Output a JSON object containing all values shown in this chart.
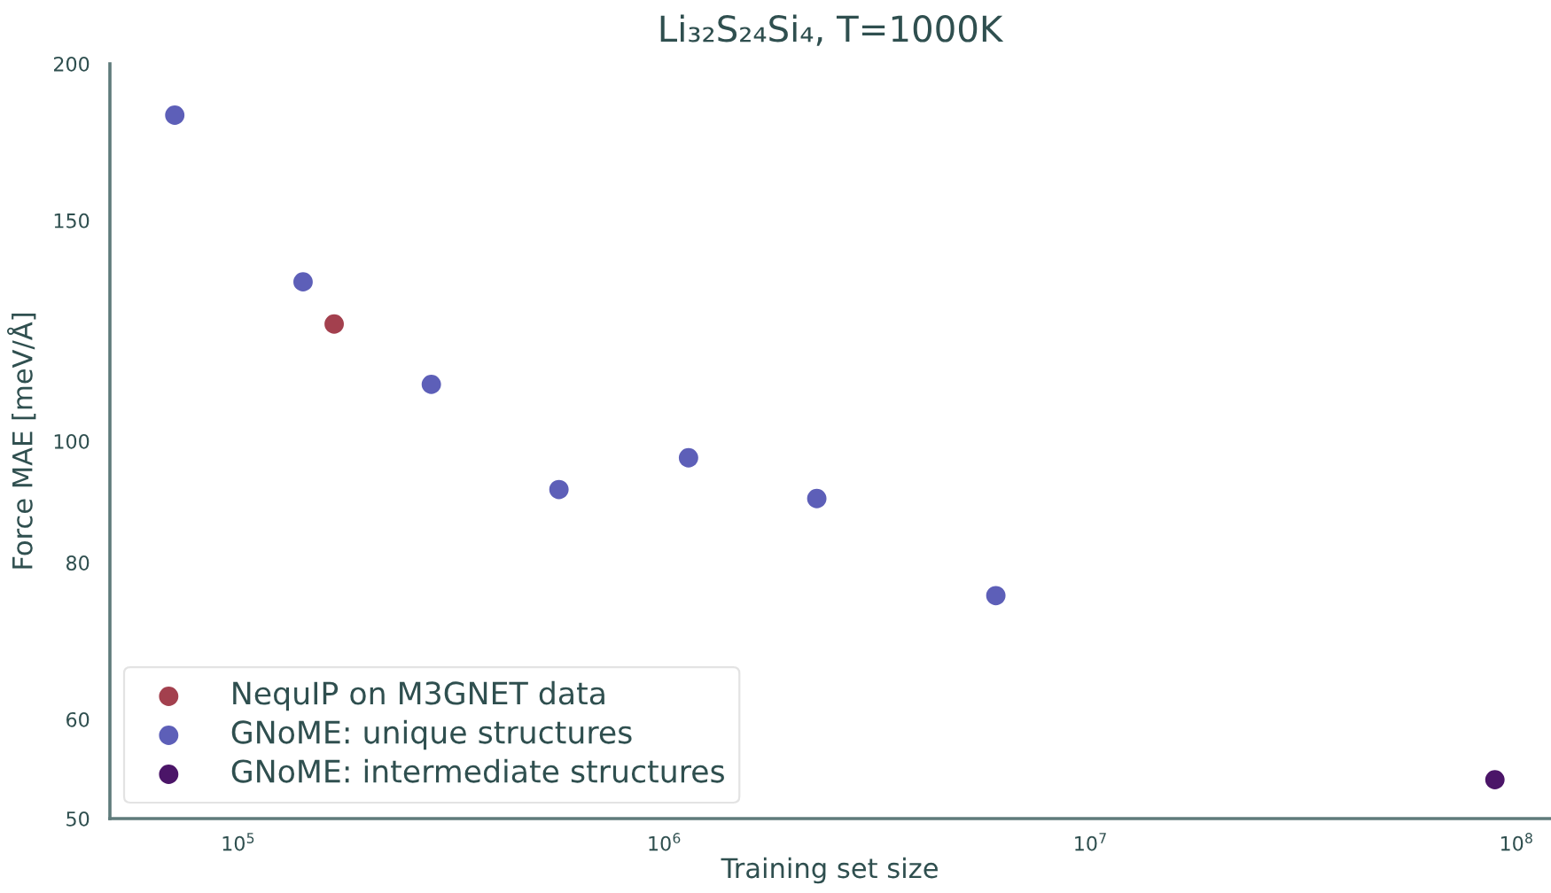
{
  "chart_data": {
    "type": "scatter",
    "title": "Li₃₂S₂₄Si₄, T=1000K",
    "xlabel": "Training set size",
    "ylabel": "Force MAE [meV/Å]",
    "log": "xy",
    "xlim": [
      50000,
      120000000
    ],
    "xticks": [
      {
        "value": 100000,
        "label": "10$^{5}$"
      },
      {
        "value": 1000000,
        "label": "10$^{6}$"
      },
      {
        "value": 10000000,
        "label": "10$^{7}$"
      },
      {
        "value": 100000000,
        "label": "10$^{8}$"
      }
    ],
    "ylim": [
      50,
      200
    ],
    "yticks": [
      50,
      60,
      80,
      100,
      150,
      200
    ],
    "legend": "bottom left",
    "marker": "circle",
    "series": [
      {
        "name": "NequIP on M3GNET data",
        "color": "#a3404e",
        "x": [
          168000
        ],
        "values": [
          124
        ]
      },
      {
        "name": "GNoME: unique structures",
        "color": "#5d5fb8",
        "x": [
          71000,
          142000,
          284000,
          566000,
          1140000,
          2280000,
          6000000
        ],
        "values": [
          182,
          134,
          111,
          91.5,
          97,
          90,
          75.3
        ]
      },
      {
        "name": "GNoME: intermediate structures",
        "color": "#4b1568",
        "x": [
          89000000
        ],
        "values": [
          53.7
        ]
      }
    ]
  }
}
